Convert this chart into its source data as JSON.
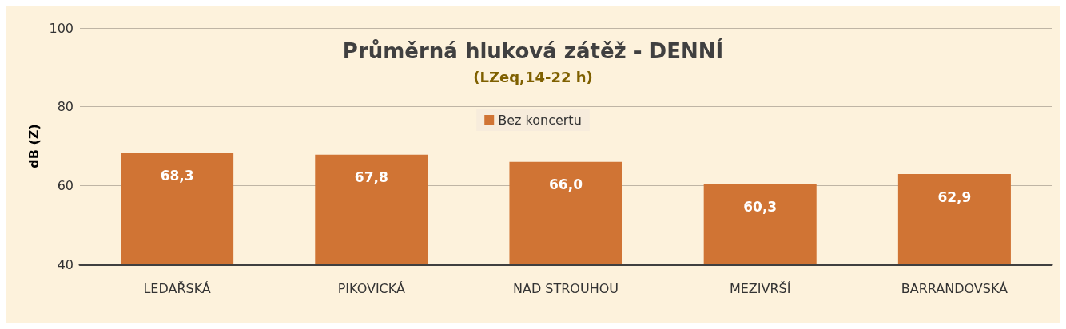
{
  "chart_data": {
    "type": "bar",
    "title": "Průměrná hluková zátěž - DENNÍ",
    "subtitle": "(LZeq,14-22 h)",
    "ylabel": "dB (Z)",
    "categories": [
      "LEDAŘSKÁ",
      "PIKOVICKÁ",
      "NAD STROUHOU",
      "MEZIVRŠÍ",
      "BARRANDOVSKÁ"
    ],
    "series": [
      {
        "name": "Bez koncertu",
        "color": "#d07434",
        "values": [
          68.3,
          67.8,
          66.0,
          60.3,
          62.9
        ],
        "value_labels": [
          "68,3",
          "67,8",
          "66,0",
          "60,3",
          "62,9"
        ]
      }
    ],
    "ylim": [
      40,
      100
    ],
    "yticks": [
      40,
      60,
      80,
      100
    ],
    "grid": "y",
    "legend": "top"
  }
}
